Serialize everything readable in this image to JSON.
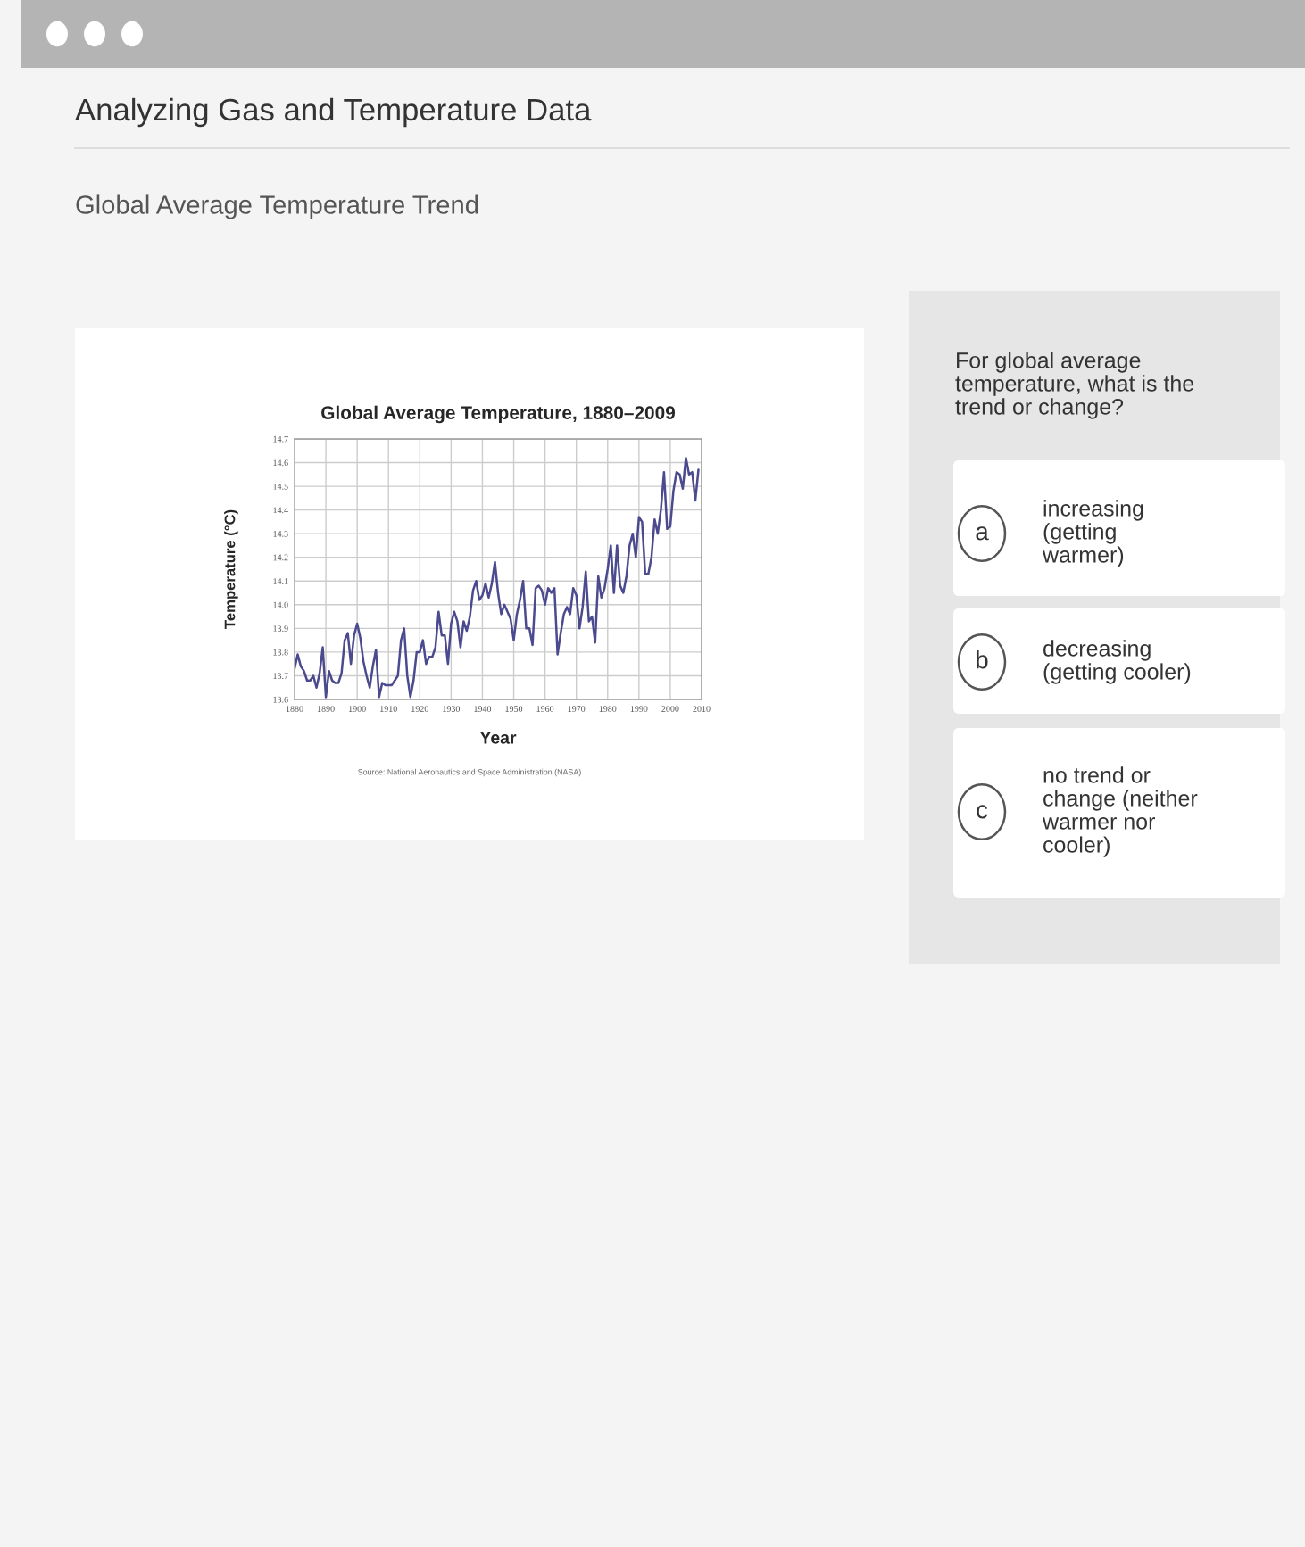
{
  "chart_data": {
    "type": "line",
    "title": "Global Average Temperature, 1880–2009",
    "xlabel": "Year",
    "ylabel": "Temperature (°C)",
    "x": [
      1880,
      1881,
      1882,
      1883,
      1884,
      1885,
      1886,
      1887,
      1888,
      1889,
      1890,
      1891,
      1892,
      1893,
      1894,
      1895,
      1896,
      1897,
      1898,
      1899,
      1900,
      1901,
      1902,
      1903,
      1904,
      1905,
      1906,
      1907,
      1908,
      1909,
      1910,
      1911,
      1912,
      1913,
      1914,
      1915,
      1916,
      1917,
      1918,
      1919,
      1920,
      1921,
      1922,
      1923,
      1924,
      1925,
      1926,
      1927,
      1928,
      1929,
      1930,
      1931,
      1932,
      1933,
      1934,
      1935,
      1936,
      1937,
      1938,
      1939,
      1940,
      1941,
      1942,
      1943,
      1944,
      1945,
      1946,
      1947,
      1948,
      1949,
      1950,
      1951,
      1952,
      1953,
      1954,
      1955,
      1956,
      1957,
      1958,
      1959,
      1960,
      1961,
      1962,
      1963,
      1964,
      1965,
      1966,
      1967,
      1968,
      1969,
      1970,
      1971,
      1972,
      1973,
      1974,
      1975,
      1976,
      1977,
      1978,
      1979,
      1980,
      1981,
      1982,
      1983,
      1984,
      1985,
      1986,
      1987,
      1988,
      1989,
      1990,
      1991,
      1992,
      1993,
      1994,
      1995,
      1996,
      1997,
      1998,
      1999,
      2000,
      2001,
      2002,
      2003,
      2004,
      2005,
      2006,
      2007,
      2008,
      2009
    ],
    "series": [
      {
        "color": "#4b4a8f",
        "values": [
          13.73,
          13.79,
          13.74,
          13.72,
          13.68,
          13.68,
          13.7,
          13.65,
          13.71,
          13.82,
          13.61,
          13.72,
          13.68,
          13.67,
          13.67,
          13.71,
          13.85,
          13.88,
          13.75,
          13.87,
          13.92,
          13.86,
          13.76,
          13.7,
          13.65,
          13.74,
          13.81,
          13.61,
          13.67,
          13.66,
          13.66,
          13.66,
          13.68,
          13.7,
          13.85,
          13.9,
          13.7,
          13.61,
          13.68,
          13.8,
          13.8,
          13.85,
          13.75,
          13.78,
          13.78,
          13.82,
          13.97,
          13.87,
          13.87,
          13.75,
          13.92,
          13.97,
          13.93,
          13.82,
          13.93,
          13.89,
          13.95,
          14.06,
          14.1,
          14.02,
          14.04,
          14.09,
          14.03,
          14.09,
          14.18,
          14.05,
          13.96,
          14.0,
          13.97,
          13.94,
          13.85,
          13.96,
          14.02,
          14.1,
          13.9,
          13.9,
          13.83,
          14.07,
          14.08,
          14.06,
          14.0,
          14.07,
          14.05,
          14.07,
          13.79,
          13.88,
          13.96,
          13.99,
          13.96,
          14.07,
          14.04,
          13.9,
          13.99,
          14.14,
          13.93,
          13.95,
          13.84,
          14.12,
          14.03,
          14.07,
          14.15,
          14.25,
          14.05,
          14.25,
          14.08,
          14.05,
          14.12,
          14.25,
          14.3,
          14.2,
          14.37,
          14.35,
          14.13,
          14.13,
          14.2,
          14.36,
          14.3,
          14.4,
          14.56,
          14.32,
          14.33,
          14.48,
          14.56,
          14.55,
          14.49,
          14.62,
          14.55,
          14.56,
          14.44,
          14.57
        ]
      }
    ],
    "xlim": [
      1880,
      2010
    ],
    "xticks": [
      1880,
      1890,
      1900,
      1910,
      1920,
      1930,
      1940,
      1950,
      1960,
      1970,
      1980,
      1990,
      2000,
      2010
    ],
    "ylim": [
      13.6,
      14.7
    ],
    "yticks": [
      {
        "value": 13.6,
        "label": "13.6"
      },
      {
        "value": 13.7,
        "label": "13.7"
      },
      {
        "value": 13.8,
        "label": "13.8"
      },
      {
        "value": 13.9,
        "label": "13.9"
      },
      {
        "value": 14.0,
        "label": "14.0"
      },
      {
        "value": 14.1,
        "label": "14.1"
      },
      {
        "value": 14.2,
        "label": "14.2"
      },
      {
        "value": 14.3,
        "label": "14.3"
      },
      {
        "value": 14.4,
        "label": "14.4"
      },
      {
        "value": 14.5,
        "label": "14.5"
      },
      {
        "value": 14.6,
        "label": "14.6"
      },
      {
        "value": 14.7,
        "label": "14.7"
      }
    ],
    "grid": true,
    "marker": "none",
    "line_style": "solid",
    "annotations": [
      "Source: National Aeronautics and Space Administration (NASA)",
      "Analyzing Gas and Temperature Data",
      "Global Average Temperature Trend",
      "For global average\ntemperature, what is the\ntrend or change?",
      "a",
      "increasing\n(getting\nwarmer)",
      "b",
      "decreasing\n(getting cooler)",
      "c",
      "no trend or\nchange (neither\nwarmer nor\ncooler)"
    ]
  }
}
